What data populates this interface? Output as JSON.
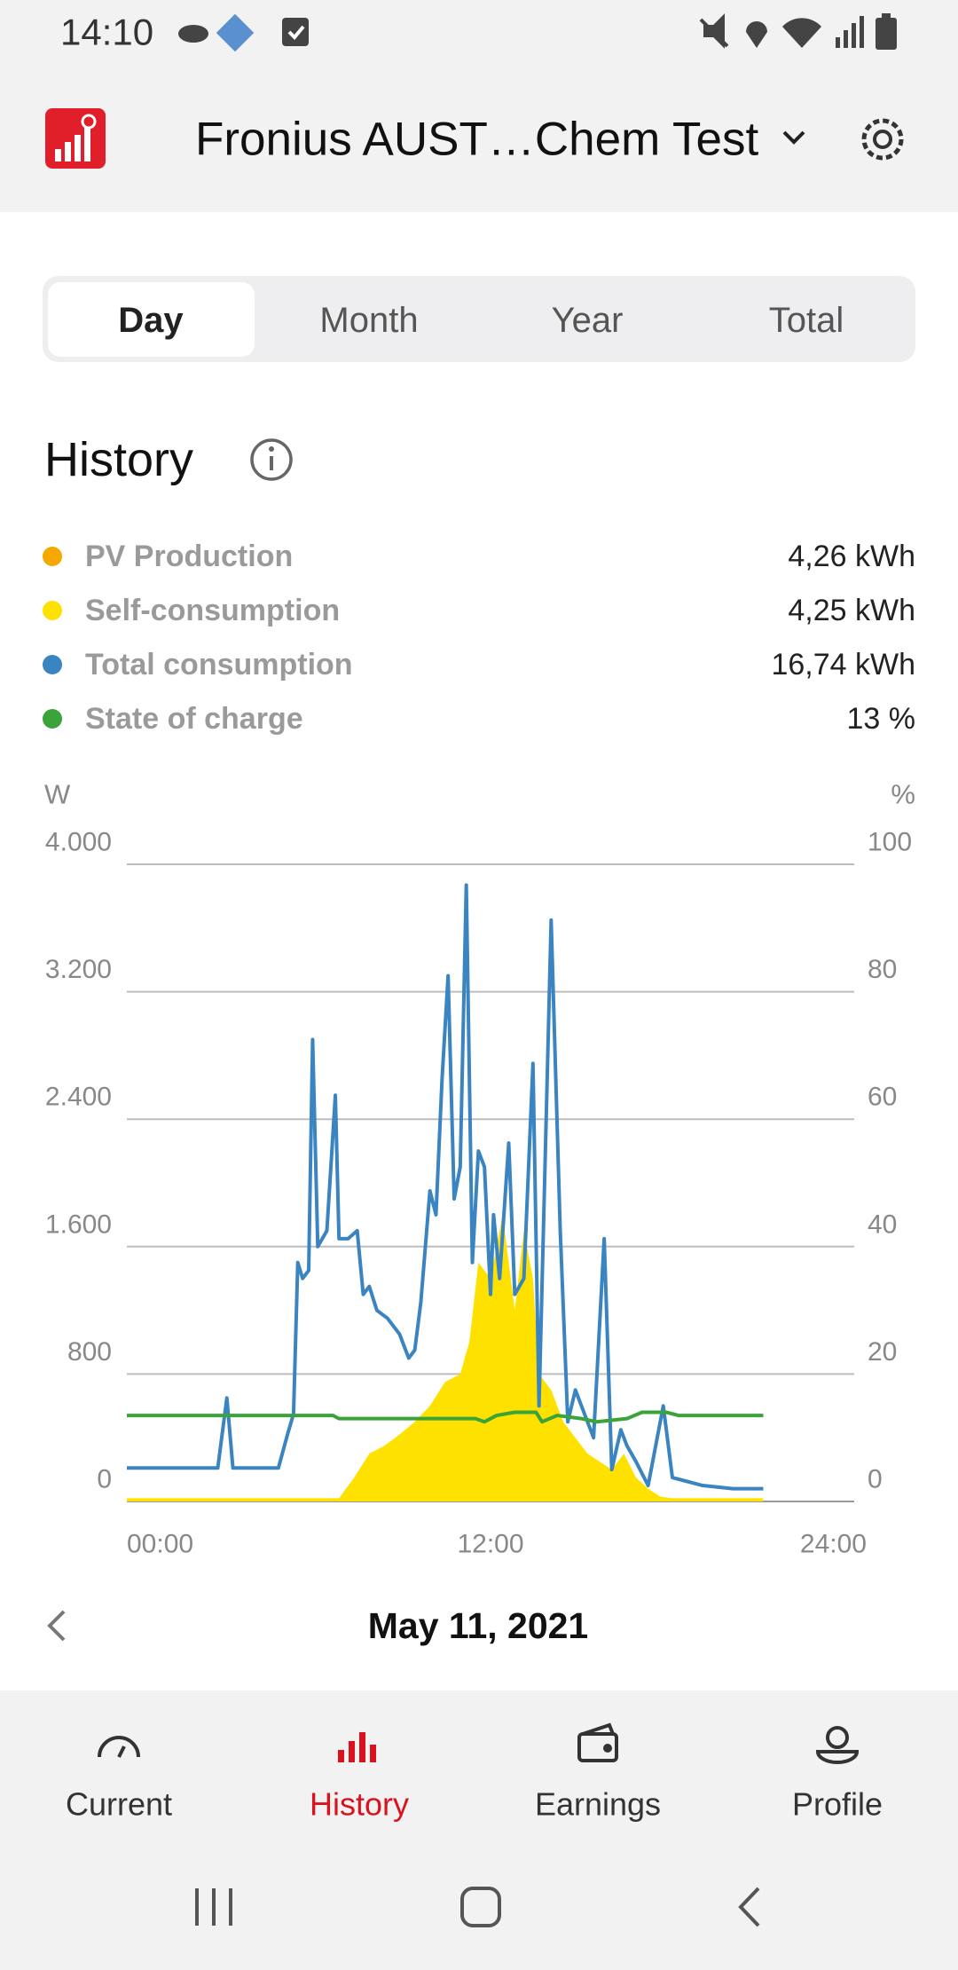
{
  "status_bar": {
    "time": "14:10"
  },
  "header": {
    "title": "Fronius AUST…Chem Test"
  },
  "tabs": [
    "Day",
    "Month",
    "Year",
    "Total"
  ],
  "section": {
    "title": "History"
  },
  "chart_data": {
    "type": "line",
    "y_label": "W",
    "y2_label": "%",
    "xlim": [
      0,
      24
    ],
    "xticks": [
      {
        "value": 0,
        "label": "00:00"
      },
      {
        "value": 12,
        "label": "12:00"
      },
      {
        "value": 24,
        "label": "24:00"
      }
    ],
    "ylim": [
      0,
      4000
    ],
    "yticks": [
      0,
      800,
      {
        "value": 1600,
        "label": "1.600"
      },
      {
        "value": 2400,
        "label": "2.400"
      },
      {
        "value": 3200,
        "label": "3.200"
      },
      {
        "value": 4000,
        "label": "4.000"
      }
    ],
    "y2lim": [
      0,
      100
    ],
    "y2ticks": [
      0,
      20,
      40,
      60,
      80,
      100
    ],
    "grid": true,
    "series": [
      {
        "name": "PV Production",
        "color": "#f5a800",
        "total": "4,26 kWh"
      },
      {
        "name": "Self-consumption",
        "color": "#ffe100",
        "total": "4,25 kWh",
        "style": "area",
        "x": [
          0,
          7.0,
          7.5,
          8.0,
          8.5,
          9.0,
          9.5,
          10.0,
          10.5,
          11.0,
          11.3,
          11.6,
          12.0,
          12.4,
          12.8,
          13.1,
          13.4,
          13.6,
          14.0,
          14.4,
          14.8,
          15.2,
          15.6,
          16.0,
          16.4,
          16.8,
          17.2,
          17.6,
          18.0,
          21.0
        ],
        "values": [
          20,
          20,
          150,
          300,
          350,
          420,
          500,
          600,
          750,
          800,
          1000,
          1500,
          1400,
          1800,
          1200,
          1700,
          1400,
          800,
          700,
          500,
          400,
          300,
          250,
          200,
          300,
          150,
          80,
          30,
          20,
          20
        ]
      },
      {
        "name": "Total consumption",
        "color": "#3a84c1",
        "total": "16,74 kWh",
        "style": "line",
        "x": [
          0,
          3,
          3.3,
          3.5,
          4.5,
          5.0,
          5.3,
          5.5,
          5.64,
          5.8,
          6.0,
          6.13,
          6.3,
          6.6,
          6.88,
          7.0,
          7.3,
          7.6,
          7.8,
          8.0,
          8.25,
          8.6,
          9.0,
          9.3,
          9.5,
          9.7,
          10.0,
          10.2,
          10.4,
          10.6,
          10.8,
          11.0,
          11.2,
          11.4,
          11.6,
          11.8,
          12.0,
          12.1,
          12.3,
          12.6,
          12.8,
          13.1,
          13.4,
          13.6,
          14.0,
          14.3,
          14.55,
          14.8,
          15.1,
          15.4,
          15.75,
          16.0,
          16.3,
          16.5,
          16.8,
          17.2,
          17.7,
          18.0,
          19.0,
          20.0,
          21.0
        ],
        "values": [
          210,
          210,
          650,
          210,
          210,
          210,
          420,
          550,
          1500,
          1400,
          1450,
          2900,
          1600,
          1700,
          2550,
          1650,
          1650,
          1700,
          1300,
          1350,
          1200,
          1150,
          1050,
          900,
          950,
          1250,
          1950,
          1800,
          2650,
          3300,
          1900,
          2100,
          3870,
          1500,
          2200,
          2100,
          1300,
          1800,
          1400,
          2250,
          1300,
          1400,
          2750,
          600,
          3650,
          1700,
          500,
          700,
          550,
          400,
          1650,
          200,
          450,
          350,
          250,
          100,
          600,
          150,
          100,
          80,
          80
        ]
      },
      {
        "name": "State of charge",
        "color": "#3aa33a",
        "total": "13 %",
        "style": "line",
        "axis": "y2",
        "x": [
          0,
          6.8,
          7.0,
          11.5,
          11.8,
          12.2,
          12.8,
          13.5,
          13.7,
          14.2,
          15.0,
          15.5,
          16.5,
          17.0,
          17.8,
          18.2,
          21.0
        ],
        "values": [
          13.5,
          13.5,
          13,
          13,
          12.5,
          13.5,
          14,
          14,
          12.5,
          13.5,
          13,
          12.5,
          13,
          14,
          14,
          13.5,
          13.5
        ]
      }
    ]
  },
  "date": "May 11, 2021",
  "bottom_nav": [
    "Current",
    "History",
    "Earnings",
    "Profile"
  ]
}
